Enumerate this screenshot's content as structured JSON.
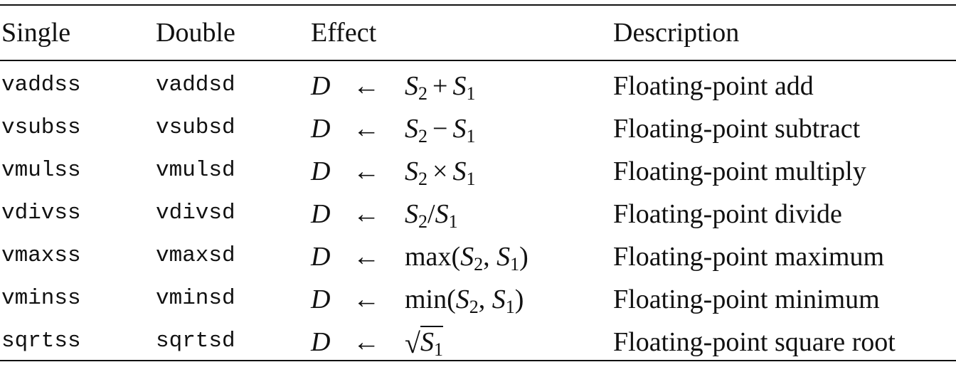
{
  "header": {
    "single": "Single",
    "double": "Double",
    "effect": "Effect",
    "description": "Description"
  },
  "rows": [
    {
      "single": "vaddss",
      "double": "vaddsd",
      "dest": "D",
      "arrow": "←",
      "expr": {
        "lhs": "S",
        "lhs_sub": "2",
        "op": "+",
        "rhs": "S",
        "rhs_sub": "1"
      },
      "description": "Floating-point add"
    },
    {
      "single": "vsubss",
      "double": "vsubsd",
      "dest": "D",
      "arrow": "←",
      "expr": {
        "lhs": "S",
        "lhs_sub": "2",
        "op": "−",
        "rhs": "S",
        "rhs_sub": "1"
      },
      "description": "Floating-point subtract"
    },
    {
      "single": "vmulss",
      "double": "vmulsd",
      "dest": "D",
      "arrow": "←",
      "expr": {
        "lhs": "S",
        "lhs_sub": "2",
        "op": "×",
        "rhs": "S",
        "rhs_sub": "1"
      },
      "description": "Floating-point multiply"
    },
    {
      "single": "vdivss",
      "double": "vdivsd",
      "dest": "D",
      "arrow": "←",
      "expr": {
        "lhs": "S",
        "lhs_sub": "2",
        "op": "/",
        "rhs": "S",
        "rhs_sub": "1"
      },
      "description": "Floating-point divide"
    },
    {
      "single": "vmaxss",
      "double": "vmaxsd",
      "dest": "D",
      "arrow": "←",
      "expr": {
        "fn": "max",
        "open": "(",
        "a": "S",
        "a_sub": "2",
        "sep": ",",
        "b": "S",
        "b_sub": "1",
        "close": ")"
      },
      "description": "Floating-point maximum"
    },
    {
      "single": "vminss",
      "double": "vminsd",
      "dest": "D",
      "arrow": "←",
      "expr": {
        "fn": "min",
        "open": "(",
        "a": "S",
        "a_sub": "2",
        "sep": ",",
        "b": "S",
        "b_sub": "1",
        "close": ")"
      },
      "description": "Floating-point minimum"
    },
    {
      "single": "sqrtss",
      "double": "sqrtsd",
      "dest": "D",
      "arrow": "←",
      "expr": {
        "radical": "√",
        "arg": "S",
        "arg_sub": "1"
      },
      "description": "Floating-point square root"
    }
  ]
}
